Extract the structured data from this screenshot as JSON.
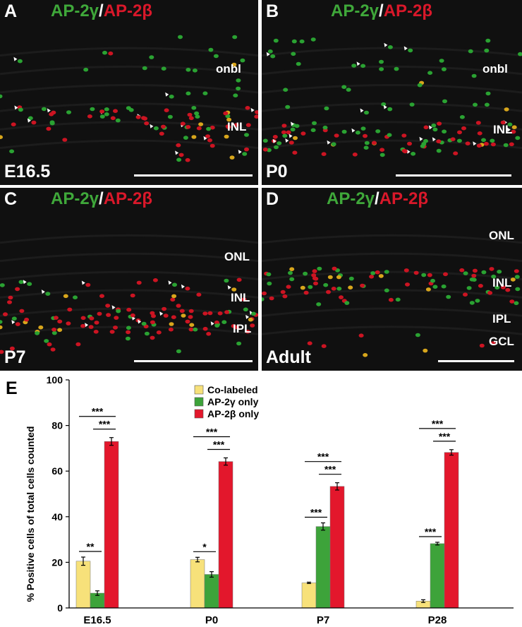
{
  "panels": [
    {
      "letter": "A",
      "stain_green": "AP-2γ",
      "slash": "/",
      "stain_red": "AP-2β",
      "age": "E16.5",
      "layers": [
        "onbl",
        "INL"
      ]
    },
    {
      "letter": "B",
      "stain_green": "AP-2γ",
      "slash": "/",
      "stain_red": "AP-2β",
      "age": "P0",
      "layers": [
        "onbl",
        "INL"
      ]
    },
    {
      "letter": "C",
      "stain_green": "AP-2γ",
      "slash": "/",
      "stain_red": "AP-2β",
      "age": "P7",
      "layers": [
        "ONL",
        "INL",
        "IPL"
      ]
    },
    {
      "letter": "D",
      "stain_green": "AP-2γ",
      "slash": "/",
      "stain_red": "AP-2β",
      "age": "Adult",
      "layers": [
        "ONL",
        "INL",
        "IPL",
        "GCL"
      ]
    }
  ],
  "chart_letter": "E",
  "colors": {
    "co_labeled": "#f7e17a",
    "gamma_only": "#3da33a",
    "beta_only": "#e3172c"
  },
  "chart_data": {
    "type": "bar",
    "ylabel": "% Positive cells of total cells counted",
    "ylim": [
      0,
      100
    ],
    "yticks": [
      "0",
      "20",
      "40",
      "60",
      "80",
      "100"
    ],
    "categories": [
      "E16.5",
      "P0",
      "P7",
      "P28"
    ],
    "series": [
      {
        "name": "Co-labeled",
        "values": [
          20.5,
          21.2,
          11.0,
          3.0
        ],
        "errors": [
          1.8,
          1.0,
          0.3,
          0.6
        ]
      },
      {
        "name": "AP-2γ only",
        "values": [
          6.5,
          14.7,
          35.7,
          28.2
        ],
        "errors": [
          1.0,
          1.2,
          1.6,
          0.6
        ]
      },
      {
        "name": "AP-2β only",
        "values": [
          73.0,
          64.2,
          53.3,
          68.2
        ],
        "errors": [
          1.7,
          1.6,
          1.6,
          1.2
        ]
      }
    ],
    "significance": [
      {
        "group": "E16.5",
        "pair": "co-gamma",
        "label": "**"
      },
      {
        "group": "E16.5",
        "pair": "gamma-beta",
        "label": "***"
      },
      {
        "group": "E16.5",
        "pair": "co-beta",
        "label": "***"
      },
      {
        "group": "P0",
        "pair": "co-gamma",
        "label": "*"
      },
      {
        "group": "P0",
        "pair": "gamma-beta",
        "label": "***"
      },
      {
        "group": "P0",
        "pair": "co-beta",
        "label": "***"
      },
      {
        "group": "P7",
        "pair": "co-gamma",
        "label": "***"
      },
      {
        "group": "P7",
        "pair": "gamma-beta",
        "label": "***"
      },
      {
        "group": "P7",
        "pair": "co-beta",
        "label": "***"
      },
      {
        "group": "P28",
        "pair": "co-gamma",
        "label": "***"
      },
      {
        "group": "P28",
        "pair": "gamma-beta",
        "label": "***"
      },
      {
        "group": "P28",
        "pair": "co-beta",
        "label": "***"
      }
    ],
    "legend_position": "top-center"
  }
}
